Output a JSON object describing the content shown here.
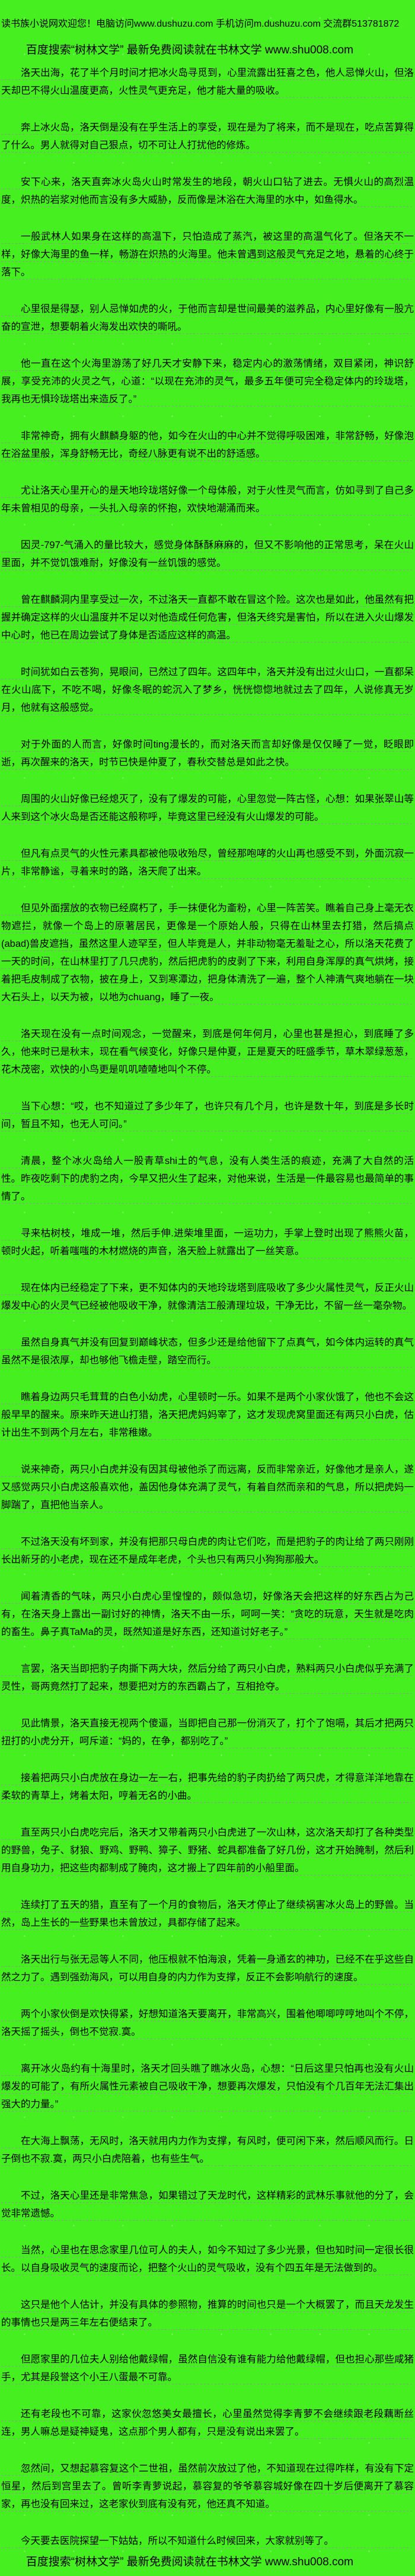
{
  "page": {
    "background_color": "#46EF20",
    "text_color": "#000000",
    "rule_color": "#8F968E"
  },
  "header": {
    "welcome_line": "读书族小说网欢迎您！电脑访问www.dushuzu.com 手机访问m.dushuzu.com 交流群513781872",
    "promo_line": "百度搜索“树林文学” 最新免费阅读就在书林文学 www.shu008.com"
  },
  "content": {
    "paragraphs": [
      "洛天出海，花了半个月时间才把冰火岛寻觅到，心里流露出狂喜之色，他人忌惮火山，但洛天却巴不得火山温度更高，火性灵气更充足，他才能大量的吸收。",
      "奔上冰火岛，洛天倒是没有在乎生活上的享受，现在是为了将来，而不是现在，吃点苦算得了什么。男人就得对自己狠点，切不可让人打扰他的修炼。",
      "安下心来，洛天直奔冰火岛火山时常发生的地段，朝火山口钻了进去。无惧火山的高烈温度，炽热的岩浆对他而言没有多大威胁，反而像是沐浴在大海里的水中，如鱼得水。",
      "一般武林人如果身在这样的高温下，只怕造成了蒸汽，被这里的高温气化了。但洛天不一样，好像大海里的鱼一样，畅游在炽热的火海里。他未曾遇到这般灵气充足之地，悬着的心终于落下。",
      "心里很是得瑟，别人忌惮如虎的火，于他而言却是世间最美的滋养品，内心里好像有一股亢奋的宣泄，想要朝着火海发出欢快的嘶吼。",
      "他一直在这个火海里游荡了好几天才安静下来，稳定内心的激荡情绪，双目紧闭，神识舒展，享受充沛的火灵之气，心道：“以现在充沛的灵气，最多五年便可完全稳定体内的玲珑塔，我再也无惧玲珑塔出来造反了。”",
      "非常神奇，拥有火麒麟身躯的他，如今在火山的中心并不觉得呼吸困难，非常舒畅，好像泡在浴盆里般，浑身舒畅无比，奇经八脉更有说不出的舒适感。",
      "尤让洛天心里开心的是天地玲珑塔好像一个母体般，对于火性灵气而言，仿如寻到了自己多年未曾相见的母亲，一头扎入母亲的怀抱，欢快地潮涌而来。",
      "因灵-797-气涌入的量比较大，感觉身体酥酥麻麻的，但又不影响他的正常思考，呆在火山里面，并不觉饥饿难耐，好像没有一丝饥饿的感觉。",
      "曾在麒麟洞内里享受过一次，不过洛天一直都不敢在冒这个险。这次也是如此，他虽然有把握并确定这样的火山温度并不足以对他造成任何危害，但洛天终究是害怕，所以在进入火山爆发中心时，他已在周边尝试了身体是否适应这样的高温。",
      "时间犹如白云苍狗，晃眼间，已然过了四年。这四年中，洛天并没有出过火山口，一直都呆在火山底下，不吃不喝，好像冬眠的蛇沉入了梦乡，恍恍惚惚地就过去了四年，人说修真无岁月，他就有这般感觉。",
      "对于外面的人而言，好像时间ting漫长的，而对洛天而言却好像是仅仅睡了一觉，眨眼即逝，再次醒来的洛天，时节已快是仲夏了，春秋交替总是如此之快。",
      "周围的火山好像已经熄灭了，没有了爆发的可能，心里忽觉一阵古怪，心想：如果张翠山等人来到这个冰火岛是否还能这般称呼，毕竟这里已经没有火山爆发的可能。",
      "但凡有点灵气的火性元素具都被他吸收殆尽，曾经那咆哮的火山再也感受不到，外面沉寂一片，非常静谧，寻着来时的路，洛天爬了出来。",
      "但见外面摆放的衣物已经腐朽了，手一抹便化为齑粉，心里一阵苦笑。瞧着自己身上毫无衣物遮拦，就像一个岛上的原著居民，更像是一个原始人般，只得在山林里去打猎，然后搞点(abad)兽皮遮挡，虽然这里人迹罕至，但人毕竟是人，并非动物毫无羞耻之心，所以洛天花费了一天的时间，在山林里打了几只虎豹，然后把虎豹的皮剥了下来，利用自身浑厚的真气烘烤，接着把毛皮制成了衣物，披在身上，又到寒潭边，把身体清洗了一遍，整个人神清气爽地躺在一块大石头上，以天为被，以地为chuang，睡了一夜。",
      "洛天现在没有一点时间观念，一觉醒来，到底是何年何月，心里也甚是担心，到底睡了多久，他来时已是秋末，现在看气候变化，好像只是仲夏，正是夏天的旺盛季节，草木翠绿葱葱，花木茂密，欢快的小鸟更是叽叽喳喳地叫个不停。",
      "当下心想：“哎，也不知道过了多少年了，也许只有几个月，也许是数十年，到底是多长时间，暂且不知，也无人可问。”",
      "清晨，整个冰火岛给人一股青草shi土的气息，没有人类生活的痕迹，充满了大自然的活性。昨夜吃剩下的虎豹之肉，今早又把火生了起来，对他来说，生活是一件最容易也最简单的事情了。",
      "寻来枯树枝，堆成一堆，然后手伸.进柴堆里面，一运功力，手掌上登时出现了熊熊火苗，顿时火起，听着嗤嗤的木材燃烧的声音，洛天脸上就露出了一丝笑意。",
      "现在体内已经稳定了下来，更不知体内的天地玲珑塔到底吸收了多少火属性灵气，反正火山爆发中心的火灵气已经被他吸收干净，就像清洁工般清理垃圾，干净无比，不留一丝一毫杂物。",
      "虽然自身真气并没有回复到巅峰状态，但多少还是给他留下了点真气，如今体内运转的真气虽然不是很浓厚，却也够他飞檐走壁，踏空而行。",
      "瞧着身边两只毛茸茸的白色小幼虎，心里顿时一乐。如果不是两个小家伙饿了，他也不会这般早早的醒来。原来昨天进山打猎，洛天把虎妈妈宰了，这才发现虎窝里面还有两只小白虎，估计出生不到两个月左右，非常稚嫩。",
      "说来神奇，两只小白虎并没有因其母被他杀了而远离，反而非常亲近，好像他才是亲人，遂又感觉两只小白虎这般喜欢他，盖因他身体充满了灵气，有着自然而亲和的气息，所以把虎妈一脚踹了，直把他当亲人。",
      "不过洛天没有坏到家，并没有把那只母白虎的肉让它们吃，而是把豹子的肉让给了两只刚刚长出新牙的小老虎，现在还不是成年老虎，个头也只有两只小狗狗那般大。",
      "闻着清香的气味，两只小白虎心里惶惶的，颇似急切，好像洛天会把这样的好东西占为己有，在洛天身上露出一副讨好的神情，洛天不由一乐，呵呵一笑：“贪吃的玩意，天生就是吃肉的畜生。鼻子真TaMa的灵，既然知道是好东西，还知道讨好老子。”",
      "言罢，洛天当即把豹子肉撕下两大块，然后分给了两只小白虎，熟料两只小白虎似乎充满了灵性，哥两竟然打了起来，想要把对方的东西霸占了，互相抢夺。",
      "见此情景，洛天直接无视两个傻逼，当即把自己那一份消灭了，打个了饱嗝，其后才把两只扭打的小虎分开，呵斥道：“妈的，在争，都别吃了。”",
      "接着把两只小白虎放在身边一左一右，把事先给的豹子肉扔给了两只虎，才得意洋洋地靠在柔软的青草上，烤着太阳，哼着无名的小曲。",
      "直至两只小白虎吃完后，洛天才又带着两只小白虎进了一次山林，这次洛天却打了各种类型的野兽，兔子、豺狼、野鸡、野鸭、獐子、野猪、蛇具都准备了好几份，这才开始腌制，然后利用自身功力，把这些肉都制成了腌肉，这才搬上了四年前的小船里面。",
      "连续打了五天的猎，直至有了一个月的食物后，洛天才停止了继续祸害冰火岛上的野兽。当然，岛上生长的一些野果也未曾放过，具都存储了起来。",
      "洛天出行与张无忌等人不同，他压根就不怕海浪，凭着一身通玄的神功，已经不在乎这些自然之力了。遇到强劲海风，可以用自身的内力作为支撑，反正不会影响航行的速度。",
      "两个小家伙倒是欢快得紧，好想知道洛天要离开，非常高兴，围着他唧唧哼哼地叫个不停，洛天摇了摇头，倒也不觉寂.寞。",
      "离开冰火岛约有十海里时，洛天才回头瞧了瞧冰火岛，心想：“日后这里只怕再也没有火山爆发的可能了，有所火属性元素被自己吸收干净，想要再次爆发，只怕没有个几百年无法汇集出强大的力量。”",
      "在大海上飘荡，无风时，洛天就用内力作为支撑，有风时，便可闲下来，然后顺风而行。日子倒也不寂.寞，两只小白虎陪着，也有些生气。",
      "不过，洛天心里还是非常焦急，如果错过了天龙时代，这样精彩的武林乐事就他的分了，会觉非常遗憾。",
      "当然，心里也在思念家里几位可人的夫人，如今不知过了多少光景，但也知时间一定很长很长。以自身吸收灵气的速度而论，把整个火山的灵气吸收，没有个四五年是无法做到的。",
      "这只是他个人估计，并没有具体的参照物，推算的时间也只是一个大概罢了，而且天龙发生的事情也只是两三年左右便结束了。",
      "但愿家里的几位夫人别给他戴绿帽，虽然自信没有谁有能力给他戴绿帽，但也担心那些咸猪手，尤其是段誉这个小王八蛋最不可靠。",
      "还有老段也不可靠，这家伙忽悠美女最擅长，心里虽然觉得李青萝不会继续跟老段藕断丝连，男人嘛总是疑神疑鬼，这点那个男人都有，只是没有说出来罢了。",
      "忽然间，又想起慕容复这个二世祖，虽然前次放过了他，不知道现在过得咋样，有没有下定恒星，然后到宫里去了。曾听李青萝说起，慕容复的爷爷慕容城好像在四十岁后便离开了慕容家，再也没有回来过，这老家伙到底有没有死，他还真不知道。",
      "今天要去医院探望一下姑姑，所以不知道什么时候回来，大家就别等了。"
    ]
  },
  "footer": {
    "promo_line": "百度搜索“树林文学” 最新免费阅读就在书林文学 www.shu008.com"
  }
}
